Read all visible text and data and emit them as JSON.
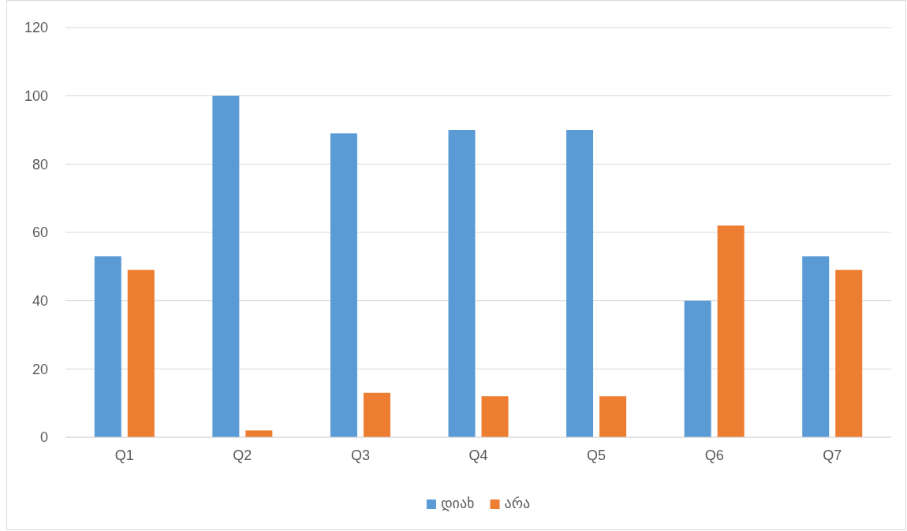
{
  "chart_data": {
    "type": "bar",
    "categories": [
      "Q1",
      "Q2",
      "Q3",
      "Q4",
      "Q5",
      "Q6",
      "Q7"
    ],
    "series": [
      {
        "name": "დიახ",
        "color": "#5b9bd5",
        "values": [
          53,
          100,
          89,
          90,
          90,
          40,
          53
        ]
      },
      {
        "name": "არა",
        "color": "#ed7d31",
        "values": [
          49,
          2,
          13,
          12,
          12,
          62,
          49
        ]
      }
    ],
    "ylim": [
      0,
      120
    ],
    "yticks": [
      0,
      20,
      40,
      60,
      80,
      100,
      120
    ],
    "grid": "y",
    "legend": "bottom"
  }
}
